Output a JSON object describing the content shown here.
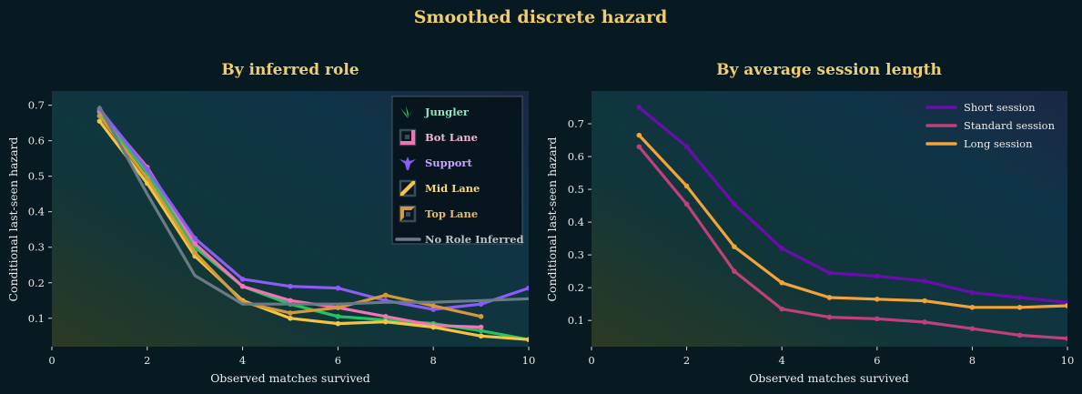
{
  "figure": {
    "suptitle": "Smoothed discrete hazard",
    "colors": {
      "background": "#071a22",
      "title": "#f0cd6e"
    }
  },
  "chart_data": [
    {
      "type": "line",
      "title": "By inferred role",
      "xlabel": "Observed matches survived",
      "ylabel": "Conditional last-seen hazard",
      "xlim": [
        0,
        10
      ],
      "ylim": [
        0.02,
        0.74
      ],
      "xticks": [
        0,
        2,
        4,
        6,
        8,
        10
      ],
      "yticks": [
        0.1,
        0.2,
        0.3,
        0.4,
        0.5,
        0.6,
        0.7
      ],
      "grid": false,
      "legend_position": "top-right",
      "series": [
        {
          "name": "Jungler",
          "color": "#22c55e",
          "label_color": "#8ee6c0",
          "icon": "jungler-icon",
          "marker": true,
          "x": [
            1,
            2,
            3,
            4,
            5,
            6,
            7,
            8,
            9,
            10
          ],
          "y": [
            0.68,
            0.51,
            0.3,
            0.19,
            0.14,
            0.105,
            0.095,
            0.085,
            0.065,
            0.04
          ]
        },
        {
          "name": "Bot Lane",
          "color": "#f472b6",
          "label_color": "#f5b5d5",
          "icon": "bot-lane-icon",
          "marker": true,
          "x": [
            1,
            2,
            3,
            4,
            5,
            6,
            7,
            8,
            9
          ],
          "y": [
            0.685,
            0.525,
            0.31,
            0.19,
            0.15,
            0.13,
            0.105,
            0.08,
            0.075
          ]
        },
        {
          "name": "Support",
          "color": "#8b5cf6",
          "label_color": "#c4a8ff",
          "icon": "support-icon",
          "marker": true,
          "x": [
            1,
            2,
            3,
            4,
            5,
            6,
            7,
            8,
            9,
            10
          ],
          "y": [
            0.69,
            0.52,
            0.325,
            0.21,
            0.19,
            0.185,
            0.15,
            0.125,
            0.14,
            0.185
          ]
        },
        {
          "name": "Mid Lane",
          "color": "#f5c542",
          "label_color": "#f5d77a",
          "icon": "mid-lane-icon",
          "marker": true,
          "x": [
            1,
            2,
            3,
            4,
            5,
            6,
            7,
            8,
            9,
            10
          ],
          "y": [
            0.655,
            0.48,
            0.275,
            0.15,
            0.1,
            0.085,
            0.09,
            0.075,
            0.05,
            0.04
          ]
        },
        {
          "name": "Top Lane",
          "color": "#d29a3a",
          "label_color": "#e8b86a",
          "icon": "top-lane-icon",
          "marker": true,
          "x": [
            1,
            2,
            3,
            4,
            5,
            6,
            7,
            8,
            9
          ],
          "y": [
            0.67,
            0.495,
            0.285,
            0.145,
            0.115,
            0.13,
            0.165,
            0.135,
            0.105
          ]
        },
        {
          "name": "No Role Inferred",
          "color": "#6b7b85",
          "label_color": "#b8c4cc",
          "icon": "",
          "marker": false,
          "x": [
            1,
            2,
            3,
            4,
            5,
            6,
            7,
            8,
            9,
            10
          ],
          "y": [
            0.695,
            0.45,
            0.22,
            0.14,
            0.14,
            0.14,
            0.145,
            0.145,
            0.15,
            0.155
          ]
        }
      ]
    },
    {
      "type": "line",
      "title": "By average session length",
      "xlabel": "Observed matches survived",
      "ylabel": "Conditional last-seen hazard",
      "xlim": [
        0,
        10
      ],
      "ylim": [
        0.02,
        0.8
      ],
      "xticks": [
        0,
        2,
        4,
        6,
        8,
        10
      ],
      "yticks": [
        0.1,
        0.2,
        0.3,
        0.4,
        0.5,
        0.6,
        0.7
      ],
      "grid": false,
      "legend_position": "top-right",
      "series": [
        {
          "name": "Short session",
          "color": "#6a0dad",
          "label_color": "#ececec",
          "icon": "",
          "marker": true,
          "x": [
            1,
            2,
            3,
            4,
            5,
            6,
            7,
            8,
            9,
            10
          ],
          "y": [
            0.75,
            0.63,
            0.455,
            0.32,
            0.245,
            0.235,
            0.22,
            0.185,
            0.17,
            0.155
          ]
        },
        {
          "name": "Standard session",
          "color": "#c0407a",
          "label_color": "#ececec",
          "icon": "",
          "marker": true,
          "x": [
            1,
            2,
            3,
            4,
            5,
            6,
            7,
            8,
            9,
            10
          ],
          "y": [
            0.63,
            0.455,
            0.25,
            0.135,
            0.11,
            0.105,
            0.095,
            0.075,
            0.055,
            0.045
          ]
        },
        {
          "name": "Long session",
          "color": "#f2a33a",
          "label_color": "#ececec",
          "icon": "",
          "marker": true,
          "x": [
            1,
            2,
            3,
            4,
            5,
            6,
            7,
            8,
            9,
            10
          ],
          "y": [
            0.665,
            0.51,
            0.325,
            0.215,
            0.17,
            0.165,
            0.16,
            0.14,
            0.14,
            0.145
          ]
        }
      ]
    }
  ]
}
